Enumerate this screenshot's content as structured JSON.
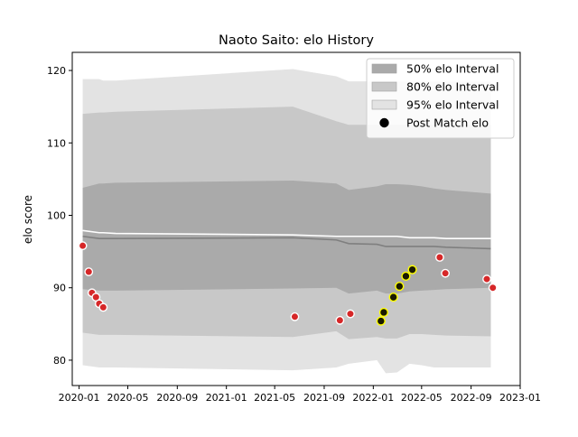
{
  "chart_data": {
    "type": "area",
    "title": "Naoto Saito: elo History",
    "xlabel": "",
    "ylabel": "elo score",
    "xlim": [
      "2019-12-15",
      "2023-01-01"
    ],
    "ylim": [
      76.5,
      122.5
    ],
    "x_ticks": [
      "2020-01",
      "2020-05",
      "2020-09",
      "2021-01",
      "2021-05",
      "2021-09",
      "2022-01",
      "2022-05",
      "2022-09",
      "2023-01"
    ],
    "y_ticks": [
      80,
      90,
      100,
      110,
      120
    ],
    "legend": {
      "position": "top-right",
      "entries": [
        "50% elo Interval",
        "80% elo Interval",
        "95% elo Interval",
        "Post Match elo"
      ]
    },
    "band_dates": [
      "2020-01-10",
      "2020-02-20",
      "2020-03-01",
      "2020-04-01",
      "2021-06-15",
      "2021-10-01",
      "2021-11-01",
      "2022-01-10",
      "2022-02-01",
      "2022-03-01",
      "2022-04-01",
      "2022-05-01",
      "2022-06-01",
      "2022-07-01",
      "2022-10-20"
    ],
    "interval_95": {
      "upper": [
        118.8,
        118.8,
        118.6,
        118.6,
        120.2,
        119.2,
        118.5,
        118.5,
        118.5,
        118.5,
        118.5,
        118.5,
        118.5,
        118.5,
        118.5
      ],
      "lower": [
        79.3,
        79.0,
        79.0,
        79.0,
        78.6,
        79.0,
        79.5,
        80.0,
        78.2,
        78.3,
        79.5,
        79.3,
        79.0,
        79.0,
        79.0
      ]
    },
    "interval_80": {
      "upper": [
        114.0,
        114.2,
        114.2,
        114.3,
        115.0,
        113.0,
        112.5,
        112.5,
        112.5,
        112.5,
        112.5,
        112.5,
        112.5,
        112.5,
        112.5
      ],
      "lower": [
        83.8,
        83.5,
        83.5,
        83.5,
        83.2,
        84.0,
        82.9,
        83.2,
        83.0,
        83.0,
        83.6,
        83.6,
        83.5,
        83.4,
        83.3
      ]
    },
    "interval_50": {
      "upper": [
        103.8,
        104.4,
        104.4,
        104.5,
        104.8,
        104.4,
        103.5,
        104.0,
        104.3,
        104.3,
        104.2,
        104.0,
        103.7,
        103.5,
        103.0
      ],
      "lower": [
        89.8,
        89.6,
        89.6,
        89.6,
        89.9,
        90.0,
        89.2,
        89.6,
        89.2,
        89.2,
        89.5,
        89.6,
        89.7,
        89.8,
        90.0
      ]
    },
    "upper_line": [
      97.9,
      97.6,
      97.6,
      97.5,
      97.3,
      97.1,
      97.1,
      97.1,
      97.1,
      97.1,
      96.9,
      96.9,
      96.9,
      96.8,
      96.8
    ],
    "mean_line": [
      97.1,
      96.8,
      96.8,
      96.8,
      96.9,
      96.6,
      96.1,
      96.0,
      95.7,
      95.7,
      95.7,
      95.7,
      95.7,
      95.6,
      95.4
    ],
    "post_match_elo": [
      {
        "date": "2020-01-10",
        "elo": 95.8,
        "highlight": false
      },
      {
        "date": "2020-01-25",
        "elo": 92.2,
        "highlight": false
      },
      {
        "date": "2020-02-02",
        "elo": 89.3,
        "highlight": false
      },
      {
        "date": "2020-02-12",
        "elo": 88.7,
        "highlight": false
      },
      {
        "date": "2020-02-20",
        "elo": 87.8,
        "highlight": false
      },
      {
        "date": "2020-03-01",
        "elo": 87.3,
        "highlight": false
      },
      {
        "date": "2021-06-20",
        "elo": 86.0,
        "highlight": false
      },
      {
        "date": "2021-10-10",
        "elo": 85.5,
        "highlight": false
      },
      {
        "date": "2021-11-05",
        "elo": 86.4,
        "highlight": false
      },
      {
        "date": "2022-01-20",
        "elo": 85.4,
        "highlight": true
      },
      {
        "date": "2022-01-27",
        "elo": 86.6,
        "highlight": true
      },
      {
        "date": "2022-02-20",
        "elo": 88.7,
        "highlight": true
      },
      {
        "date": "2022-03-07",
        "elo": 90.2,
        "highlight": true
      },
      {
        "date": "2022-03-23",
        "elo": 91.6,
        "highlight": true
      },
      {
        "date": "2022-04-08",
        "elo": 92.5,
        "highlight": true
      },
      {
        "date": "2022-06-15",
        "elo": 94.2,
        "highlight": false
      },
      {
        "date": "2022-06-29",
        "elo": 92.0,
        "highlight": false
      },
      {
        "date": "2022-10-10",
        "elo": 91.2,
        "highlight": false
      },
      {
        "date": "2022-10-25",
        "elo": 90.0,
        "highlight": false
      }
    ],
    "colors": {
      "interval_50": "#aaaaaa",
      "interval_80": "#c8c8c8",
      "interval_95": "#e3e3e3",
      "mean_line": "#7f7f7f",
      "upper_line": "#ffffff",
      "point_fill": "#d62728",
      "point_highlight_fill": "#1a1a00",
      "point_highlight_edge": "#ffff00",
      "point_edge": "#ffffff"
    }
  }
}
